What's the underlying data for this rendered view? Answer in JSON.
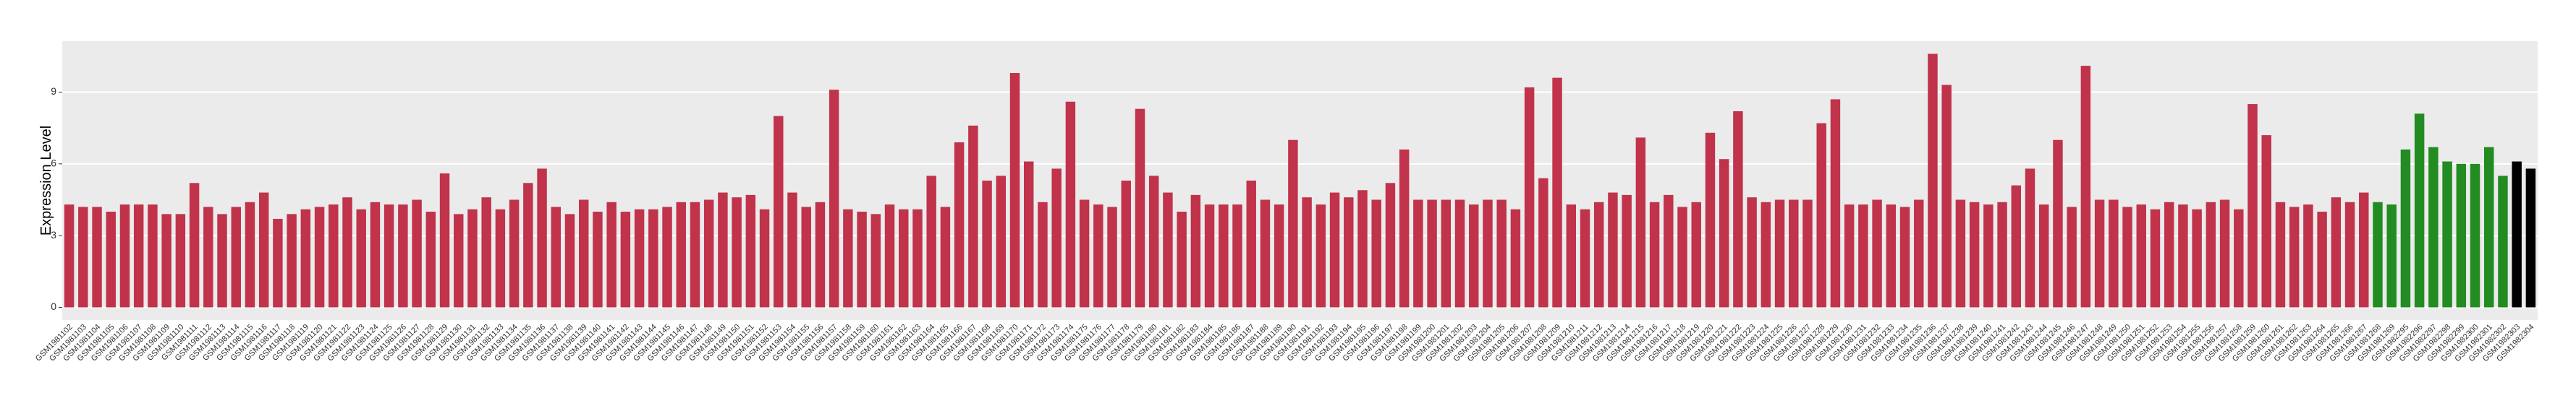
{
  "chart_data": {
    "type": "bar",
    "y_label": "Expression Level",
    "categories": [
      "GSM1981102",
      "GSM1981103",
      "GSM1981104",
      "GSM1981105",
      "GSM1981106",
      "GSM1981107",
      "GSM1981108",
      "GSM1981109",
      "GSM1981110",
      "GSM1981111",
      "GSM1981112",
      "GSM1981113",
      "GSM1981114",
      "GSM1981115",
      "GSM1981116",
      "GSM1981117",
      "GSM1981118",
      "GSM1981119",
      "GSM1981120",
      "GSM1981121",
      "GSM1981122",
      "GSM1981123",
      "GSM1981124",
      "GSM1981125",
      "GSM1981126",
      "GSM1981127",
      "GSM1981128",
      "GSM1981129",
      "GSM1981130",
      "GSM1981131",
      "GSM1981132",
      "GSM1981133",
      "GSM1981134",
      "GSM1981135",
      "GSM1981136",
      "GSM1981137",
      "GSM1981138",
      "GSM1981139",
      "GSM1981140",
      "GSM1981141",
      "GSM1981142",
      "GSM1981143",
      "GSM1981144",
      "GSM1981145",
      "GSM1981146",
      "GSM1981147",
      "GSM1981148",
      "GSM1981149",
      "GSM1981150",
      "GSM1981151",
      "GSM1981152",
      "GSM1981153",
      "GSM1981154",
      "GSM1981155",
      "GSM1981156",
      "GSM1981157",
      "GSM1981158",
      "GSM1981159",
      "GSM1981160",
      "GSM1981161",
      "GSM1981162",
      "GSM1981163",
      "GSM1981164",
      "GSM1981165",
      "GSM1981166",
      "GSM1981167",
      "GSM1981168",
      "GSM1981169",
      "GSM1981170",
      "GSM1981171",
      "GSM1981172",
      "GSM1981173",
      "GSM1981174",
      "GSM1981175",
      "GSM1981176",
      "GSM1981177",
      "GSM1981178",
      "GSM1981179",
      "GSM1981180",
      "GSM1981181",
      "GSM1981182",
      "GSM1981183",
      "GSM1981184",
      "GSM1981185",
      "GSM1981186",
      "GSM1981187",
      "GSM1981188",
      "GSM1981189",
      "GSM1981190",
      "GSM1981191",
      "GSM1981192",
      "GSM1981193",
      "GSM1981194",
      "GSM1981195",
      "GSM1981196",
      "GSM1981197",
      "GSM1981198",
      "GSM1981199",
      "GSM1981200",
      "GSM1981201",
      "GSM1981202",
      "GSM1981203",
      "GSM1981204",
      "GSM1981205",
      "GSM1981206",
      "GSM1981207",
      "GSM1981208",
      "GSM1981209",
      "GSM1981210",
      "GSM1981211",
      "GSM1981212",
      "GSM1981213",
      "GSM1981214",
      "GSM1981215",
      "GSM1981216",
      "GSM1981217",
      "GSM1981218",
      "GSM1981219",
      "GSM1981220",
      "GSM1981221",
      "GSM1981222",
      "GSM1981223",
      "GSM1981224",
      "GSM1981225",
      "GSM1981226",
      "GSM1981227",
      "GSM1981228",
      "GSM1981229",
      "GSM1981230",
      "GSM1981231",
      "GSM1981232",
      "GSM1981233",
      "GSM1981234",
      "GSM1981235",
      "GSM1981236",
      "GSM1981237",
      "GSM1981238",
      "GSM1981239",
      "GSM1981240",
      "GSM1981241",
      "GSM1981242",
      "GSM1981243",
      "GSM1981244",
      "GSM1981245",
      "GSM1981246",
      "GSM1981247",
      "GSM1981248",
      "GSM1981249",
      "GSM1981250",
      "GSM1981251",
      "GSM1981252",
      "GSM1981253",
      "GSM1981254",
      "GSM1981255",
      "GSM1981256",
      "GSM1981257",
      "GSM1981258",
      "GSM1981259",
      "GSM1981260",
      "GSM1981261",
      "GSM1981262",
      "GSM1981263",
      "GSM1981264",
      "GSM1981265",
      "GSM1981266",
      "GSM1981267",
      "GSM1981268",
      "GSM1981269",
      "GSM1982295",
      "GSM1982296",
      "GSM1982297",
      "GSM1982298",
      "GSM1982299",
      "GSM1982300",
      "GSM1982301",
      "GSM1982302",
      "GSM1982303",
      "GSM1982304"
    ],
    "values": [
      4.3,
      4.2,
      4.2,
      4.0,
      4.3,
      4.3,
      4.3,
      3.9,
      3.9,
      5.2,
      4.2,
      3.9,
      4.2,
      4.4,
      4.8,
      3.7,
      3.9,
      4.1,
      4.2,
      4.3,
      4.6,
      4.1,
      4.4,
      4.3,
      4.3,
      4.5,
      4.0,
      5.6,
      3.9,
      4.1,
      4.6,
      4.1,
      4.5,
      5.2,
      5.8,
      4.2,
      3.9,
      4.5,
      4.0,
      4.4,
      4.0,
      4.1,
      4.1,
      4.2,
      4.4,
      4.4,
      4.5,
      4.8,
      4.6,
      4.7,
      4.1,
      8.0,
      4.8,
      4.2,
      4.4,
      9.1,
      4.1,
      4.0,
      3.9,
      4.3,
      4.1,
      4.1,
      5.5,
      4.2,
      6.9,
      7.6,
      5.3,
      5.5,
      9.8,
      6.1,
      4.4,
      5.8,
      8.6,
      4.5,
      4.3,
      4.2,
      5.3,
      8.3,
      5.5,
      4.8,
      4.0,
      4.7,
      4.3,
      4.3,
      4.3,
      5.3,
      4.5,
      4.3,
      7.0,
      4.6,
      4.3,
      4.8,
      4.6,
      4.9,
      4.5,
      5.2,
      6.6,
      4.5,
      4.5,
      4.5,
      4.5,
      4.3,
      4.5,
      4.5,
      4.1,
      9.2,
      5.4,
      9.6,
      4.3,
      4.1,
      4.4,
      4.8,
      4.7,
      7.1,
      4.4,
      4.7,
      4.2,
      4.4,
      7.3,
      6.2,
      8.2,
      4.6,
      4.4,
      4.5,
      4.5,
      4.5,
      7.7,
      8.7,
      4.3,
      4.3,
      4.5,
      4.3,
      4.2,
      4.5,
      10.6,
      9.3,
      4.5,
      4.4,
      4.3,
      4.4,
      5.1,
      5.8,
      4.3,
      7.0,
      4.2,
      10.1,
      4.5,
      4.5,
      4.2,
      4.3,
      4.1,
      4.4,
      4.3,
      4.1,
      4.4,
      4.5,
      4.1,
      8.5,
      7.2,
      4.4,
      4.2,
      4.3,
      4.0,
      4.6,
      4.4,
      4.8,
      4.4,
      4.3,
      6.6,
      8.1,
      6.7,
      6.1,
      6.0,
      6.0,
      6.7,
      5.5,
      6.1,
      5.8
    ],
    "colors": [
      "#c0334a",
      "#c0334a",
      "#c0334a",
      "#c0334a",
      "#c0334a",
      "#c0334a",
      "#c0334a",
      "#c0334a",
      "#c0334a",
      "#c0334a",
      "#c0334a",
      "#c0334a",
      "#c0334a",
      "#c0334a",
      "#c0334a",
      "#c0334a",
      "#c0334a",
      "#c0334a",
      "#c0334a",
      "#c0334a",
      "#c0334a",
      "#c0334a",
      "#c0334a",
      "#c0334a",
      "#c0334a",
      "#c0334a",
      "#c0334a",
      "#c0334a",
      "#c0334a",
      "#c0334a",
      "#c0334a",
      "#c0334a",
      "#c0334a",
      "#c0334a",
      "#c0334a",
      "#c0334a",
      "#c0334a",
      "#c0334a",
      "#c0334a",
      "#c0334a",
      "#c0334a",
      "#c0334a",
      "#c0334a",
      "#c0334a",
      "#c0334a",
      "#c0334a",
      "#c0334a",
      "#c0334a",
      "#c0334a",
      "#c0334a",
      "#c0334a",
      "#c0334a",
      "#c0334a",
      "#c0334a",
      "#c0334a",
      "#c0334a",
      "#c0334a",
      "#c0334a",
      "#c0334a",
      "#c0334a",
      "#c0334a",
      "#c0334a",
      "#c0334a",
      "#c0334a",
      "#c0334a",
      "#c0334a",
      "#c0334a",
      "#c0334a",
      "#c0334a",
      "#c0334a",
      "#c0334a",
      "#c0334a",
      "#c0334a",
      "#c0334a",
      "#c0334a",
      "#c0334a",
      "#c0334a",
      "#c0334a",
      "#c0334a",
      "#c0334a",
      "#c0334a",
      "#c0334a",
      "#c0334a",
      "#c0334a",
      "#c0334a",
      "#c0334a",
      "#c0334a",
      "#c0334a",
      "#c0334a",
      "#c0334a",
      "#c0334a",
      "#c0334a",
      "#c0334a",
      "#c0334a",
      "#c0334a",
      "#c0334a",
      "#c0334a",
      "#c0334a",
      "#c0334a",
      "#c0334a",
      "#c0334a",
      "#c0334a",
      "#c0334a",
      "#c0334a",
      "#c0334a",
      "#c0334a",
      "#c0334a",
      "#c0334a",
      "#c0334a",
      "#c0334a",
      "#c0334a",
      "#c0334a",
      "#c0334a",
      "#c0334a",
      "#c0334a",
      "#c0334a",
      "#c0334a",
      "#c0334a",
      "#c0334a",
      "#c0334a",
      "#c0334a",
      "#c0334a",
      "#c0334a",
      "#c0334a",
      "#c0334a",
      "#c0334a",
      "#c0334a",
      "#c0334a",
      "#c0334a",
      "#c0334a",
      "#c0334a",
      "#c0334a",
      "#c0334a",
      "#c0334a",
      "#c0334a",
      "#c0334a",
      "#c0334a",
      "#c0334a",
      "#c0334a",
      "#c0334a",
      "#c0334a",
      "#c0334a",
      "#c0334a",
      "#c0334a",
      "#c0334a",
      "#c0334a",
      "#c0334a",
      "#c0334a",
      "#c0334a",
      "#c0334a",
      "#c0334a",
      "#c0334a",
      "#c0334a",
      "#c0334a",
      "#c0334a",
      "#c0334a",
      "#c0334a",
      "#c0334a",
      "#c0334a",
      "#c0334a",
      "#c0334a",
      "#c0334a",
      "#c0334a",
      "#c0334a",
      "#c0334a",
      "#c0334a",
      "#228b22",
      "#228b22",
      "#228b22",
      "#228b22",
      "#228b22",
      "#228b22",
      "#228b22",
      "#228b22",
      "#228b22",
      "#228b22"
    ],
    "ylim": [
      -0.53,
      11.13
    ],
    "yticks": [
      0,
      3,
      6,
      9
    ],
    "grid": true
  }
}
